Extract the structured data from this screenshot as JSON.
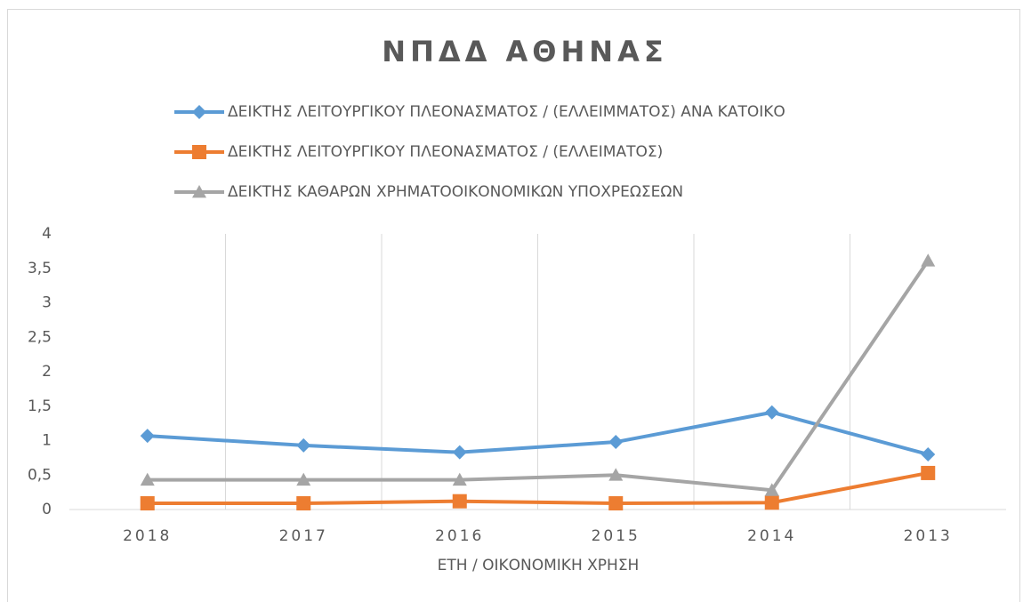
{
  "chart_data": {
    "type": "line",
    "title": "ΝΠΔΔ ΑΘΗΝΑΣ",
    "x_label": "ΕΤΗ / ΟΙΚΟΝΟΜΙΚΗ ΧΡΗΣΗ",
    "categories": [
      "2018",
      "2017",
      "2016",
      "2015",
      "2014",
      "2013"
    ],
    "series": [
      {
        "name": "ΔΕΙΚΤΗΣ ΛΕΙΤΟΥΡΓΙΚΟΥ ΠΛΕΟΝΑΣΜΑΤΟΣ / (ΕΛΛΕΙΜΜΑΤΟΣ) ΑΝΑ ΚΑΤΟΙΚΟ",
        "color": "#5b9bd5",
        "marker": "diamond",
        "values": [
          1.07,
          0.93,
          0.83,
          0.98,
          1.41,
          0.8
        ]
      },
      {
        "name": "ΔΕΙΚΤΗΣ ΛΕΙΤΟΥΡΓΙΚΟΥ ΠΛΕΟΝΑΣΜΑΤΟΣ / (ΕΛΛΕΙΜΑΤΟΣ)",
        "color": "#ed7d31",
        "marker": "square",
        "values": [
          0.09,
          0.09,
          0.12,
          0.09,
          0.1,
          0.53
        ]
      },
      {
        "name": "ΔΕΙΚΤΗΣ ΚΑΘΑΡΩΝ ΧΡΗΜΑΤΟΟΙΚΟΝΟΜΙΚΩΝ ΥΠΟΧΡΕΩΣΕΩΝ",
        "color": "#a5a5a5",
        "marker": "triangle",
        "values": [
          0.43,
          0.43,
          0.43,
          0.5,
          0.28,
          3.61
        ]
      }
    ],
    "ylim": [
      0,
      4
    ],
    "yticks": [
      0,
      {
        "value": 0.5,
        "label": "0,5"
      },
      1,
      {
        "value": 1.5,
        "label": "1,5"
      },
      2,
      {
        "value": 2.5,
        "label": "2,5"
      },
      3,
      {
        "value": 3.5,
        "label": "3,5"
      },
      4
    ],
    "xgrid": true,
    "legend": "top"
  }
}
